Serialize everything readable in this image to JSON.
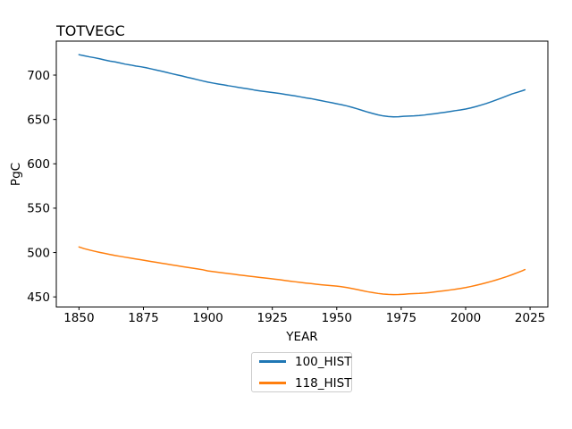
{
  "figure": {
    "background": "#ffffff"
  },
  "chart_data": {
    "type": "line",
    "title": "TOTVEGC",
    "xlabel": "YEAR",
    "ylabel": "PgC",
    "grid": false,
    "legend_position": "below-axes-center",
    "xlim": [
      1841.2,
      2031.9
    ],
    "ylim": [
      438.6,
      738.3
    ],
    "xticks": [
      1850,
      1875,
      1900,
      1925,
      1950,
      1975,
      2000,
      2025
    ],
    "yticks": [
      450,
      500,
      550,
      600,
      650,
      700
    ],
    "axis_color": "#000000",
    "series": [
      {
        "name": "100_HIST",
        "color": "#1f77b4",
        "data": [
          [
            1850,
            723.0
          ],
          [
            1852,
            721.8
          ],
          [
            1854,
            720.6
          ],
          [
            1856,
            719.6
          ],
          [
            1858,
            718.4
          ],
          [
            1860,
            717.0
          ],
          [
            1862,
            715.8
          ],
          [
            1864,
            714.9
          ],
          [
            1866,
            713.6
          ],
          [
            1868,
            712.3
          ],
          [
            1870,
            711.4
          ],
          [
            1872,
            710.2
          ],
          [
            1874,
            709.4
          ],
          [
            1876,
            708.3
          ],
          [
            1878,
            707.0
          ],
          [
            1880,
            705.7
          ],
          [
            1882,
            704.4
          ],
          [
            1884,
            703.0
          ],
          [
            1886,
            701.6
          ],
          [
            1888,
            700.3
          ],
          [
            1890,
            699.0
          ],
          [
            1892,
            697.5
          ],
          [
            1894,
            696.2
          ],
          [
            1896,
            694.8
          ],
          [
            1898,
            693.4
          ],
          [
            1900,
            692.1
          ],
          [
            1902,
            691.0
          ],
          [
            1904,
            690.0
          ],
          [
            1906,
            689.1
          ],
          [
            1908,
            688.0
          ],
          [
            1910,
            687.1
          ],
          [
            1912,
            686.0
          ],
          [
            1914,
            685.2
          ],
          [
            1916,
            684.3
          ],
          [
            1918,
            683.2
          ],
          [
            1920,
            682.3
          ],
          [
            1922,
            681.5
          ],
          [
            1924,
            680.8
          ],
          [
            1926,
            680.0
          ],
          [
            1928,
            679.2
          ],
          [
            1930,
            678.2
          ],
          [
            1932,
            677.3
          ],
          [
            1934,
            676.5
          ],
          [
            1936,
            675.4
          ],
          [
            1938,
            674.3
          ],
          [
            1940,
            673.5
          ],
          [
            1942,
            672.3
          ],
          [
            1944,
            671.2
          ],
          [
            1946,
            670.0
          ],
          [
            1948,
            668.9
          ],
          [
            1950,
            667.7
          ],
          [
            1952,
            666.5
          ],
          [
            1954,
            665.2
          ],
          [
            1956,
            663.6
          ],
          [
            1958,
            661.9
          ],
          [
            1960,
            660.1
          ],
          [
            1962,
            658.3
          ],
          [
            1964,
            656.7
          ],
          [
            1966,
            655.2
          ],
          [
            1968,
            654.0
          ],
          [
            1970,
            653.3
          ],
          [
            1972,
            652.9
          ],
          [
            1974,
            653.1
          ],
          [
            1976,
            653.5
          ],
          [
            1978,
            653.8
          ],
          [
            1980,
            654.0
          ],
          [
            1982,
            654.4
          ],
          [
            1984,
            655.0
          ],
          [
            1986,
            655.8
          ],
          [
            1988,
            656.5
          ],
          [
            1990,
            657.3
          ],
          [
            1992,
            658.1
          ],
          [
            1994,
            659.0
          ],
          [
            1996,
            659.9
          ],
          [
            1998,
            660.7
          ],
          [
            2000,
            661.7
          ],
          [
            2002,
            663.0
          ],
          [
            2004,
            664.5
          ],
          [
            2006,
            666.2
          ],
          [
            2008,
            668.0
          ],
          [
            2010,
            670.0
          ],
          [
            2012,
            672.1
          ],
          [
            2014,
            674.3
          ],
          [
            2016,
            676.5
          ],
          [
            2018,
            678.8
          ],
          [
            2020,
            680.6
          ],
          [
            2022,
            682.4
          ],
          [
            2023,
            683.4
          ]
        ]
      },
      {
        "name": "118_HIST",
        "color": "#ff7f0e",
        "data": [
          [
            1850,
            506.3
          ],
          [
            1852,
            504.4
          ],
          [
            1854,
            502.9
          ],
          [
            1856,
            501.5
          ],
          [
            1858,
            500.2
          ],
          [
            1860,
            499.0
          ],
          [
            1862,
            497.8
          ],
          [
            1864,
            496.7
          ],
          [
            1866,
            495.7
          ],
          [
            1868,
            494.7
          ],
          [
            1870,
            493.8
          ],
          [
            1872,
            492.8
          ],
          [
            1874,
            491.9
          ],
          [
            1876,
            490.9
          ],
          [
            1878,
            489.9
          ],
          [
            1880,
            489.0
          ],
          [
            1882,
            488.0
          ],
          [
            1884,
            487.1
          ],
          [
            1886,
            486.1
          ],
          [
            1888,
            485.2
          ],
          [
            1890,
            484.2
          ],
          [
            1892,
            483.3
          ],
          [
            1894,
            482.4
          ],
          [
            1896,
            481.5
          ],
          [
            1898,
            480.6
          ],
          [
            1900,
            479.3
          ],
          [
            1902,
            478.5
          ],
          [
            1904,
            477.8
          ],
          [
            1906,
            477.0
          ],
          [
            1908,
            476.3
          ],
          [
            1910,
            475.6
          ],
          [
            1912,
            474.8
          ],
          [
            1914,
            474.1
          ],
          [
            1916,
            473.4
          ],
          [
            1918,
            472.7
          ],
          [
            1920,
            472.0
          ],
          [
            1922,
            471.3
          ],
          [
            1924,
            470.7
          ],
          [
            1926,
            470.0
          ],
          [
            1928,
            469.3
          ],
          [
            1930,
            468.5
          ],
          [
            1932,
            467.7
          ],
          [
            1934,
            467.0
          ],
          [
            1936,
            466.3
          ],
          [
            1938,
            465.6
          ],
          [
            1940,
            465.0
          ],
          [
            1942,
            464.3
          ],
          [
            1944,
            463.7
          ],
          [
            1946,
            463.2
          ],
          [
            1948,
            462.7
          ],
          [
            1950,
            462.2
          ],
          [
            1952,
            461.4
          ],
          [
            1954,
            460.5
          ],
          [
            1956,
            459.4
          ],
          [
            1958,
            458.2
          ],
          [
            1960,
            457.0
          ],
          [
            1962,
            455.8
          ],
          [
            1964,
            454.8
          ],
          [
            1966,
            453.9
          ],
          [
            1968,
            453.2
          ],
          [
            1970,
            452.8
          ],
          [
            1972,
            452.6
          ],
          [
            1974,
            452.7
          ],
          [
            1976,
            453.0
          ],
          [
            1978,
            453.4
          ],
          [
            1980,
            453.7
          ],
          [
            1982,
            453.9
          ],
          [
            1984,
            454.3
          ],
          [
            1986,
            454.9
          ],
          [
            1988,
            455.6
          ],
          [
            1990,
            456.3
          ],
          [
            1992,
            457.0
          ],
          [
            1994,
            457.8
          ],
          [
            1996,
            458.6
          ],
          [
            1998,
            459.5
          ],
          [
            2000,
            460.5
          ],
          [
            2002,
            461.7
          ],
          [
            2004,
            463.0
          ],
          [
            2006,
            464.4
          ],
          [
            2008,
            465.9
          ],
          [
            2010,
            467.5
          ],
          [
            2012,
            469.2
          ],
          [
            2014,
            471.0
          ],
          [
            2016,
            472.9
          ],
          [
            2018,
            475.0
          ],
          [
            2020,
            477.2
          ],
          [
            2022,
            479.5
          ],
          [
            2023,
            480.8
          ]
        ]
      }
    ]
  },
  "legend": {
    "entries": [
      {
        "label": "100_HIST",
        "color": "#1f77b4"
      },
      {
        "label": "118_HIST",
        "color": "#ff7f0e"
      }
    ]
  }
}
